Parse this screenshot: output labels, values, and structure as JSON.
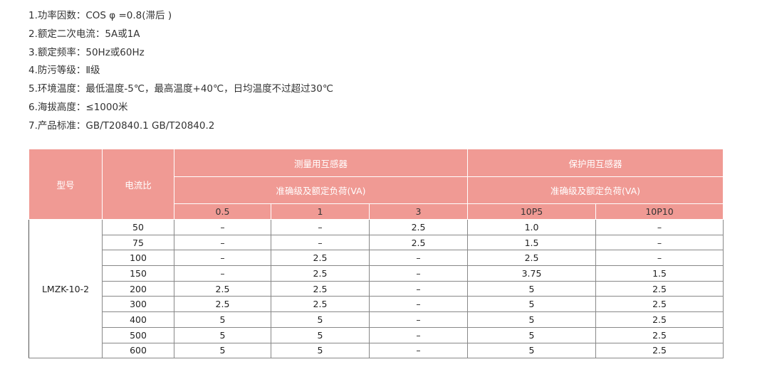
{
  "specs": [
    "1.功率因数：COS φ =0.8(滞后 )",
    "2.额定二次电流：5A或1A",
    "3.额定频率：50Hz或60Hz",
    "4.防污等级：Ⅱ级",
    "5.环境温度：最低温度-5℃，最高温度+40℃，日均温度不过超过30℃",
    "6.海拔高度：≤1000米",
    "7.产品标准：GB/T20840.1   GB/T20840.2"
  ],
  "table": {
    "header_color": "#f09a94",
    "col_model": "型号",
    "col_ratio": "电流比",
    "group_measure": "测量用互感器",
    "group_protect": "保护用互感器",
    "sub_measure": "准确级及额定负荷(VA)",
    "sub_protect": "准确级及额定负荷(VA)",
    "classes": [
      "0.5",
      "1",
      "3",
      "10P5",
      "10P10"
    ],
    "model": "LMZK-10-2",
    "rows": [
      [
        "50",
        "–",
        "–",
        "2.5",
        "1.0",
        "–"
      ],
      [
        "75",
        "–",
        "–",
        "2.5",
        "1.5",
        "–"
      ],
      [
        "100",
        "–",
        "2.5",
        "–",
        "2.5",
        "–"
      ],
      [
        "150",
        "–",
        "2.5",
        "–",
        "3.75",
        "1.5"
      ],
      [
        "200",
        "2.5",
        "2.5",
        "–",
        "5",
        "2.5"
      ],
      [
        "300",
        "2.5",
        "2.5",
        "–",
        "5",
        "2.5"
      ],
      [
        "400",
        "5",
        "5",
        "–",
        "5",
        "2.5"
      ],
      [
        "500",
        "5",
        "5",
        "–",
        "5",
        "2.5"
      ],
      [
        "600",
        "5",
        "5",
        "–",
        "5",
        "2.5"
      ]
    ]
  }
}
